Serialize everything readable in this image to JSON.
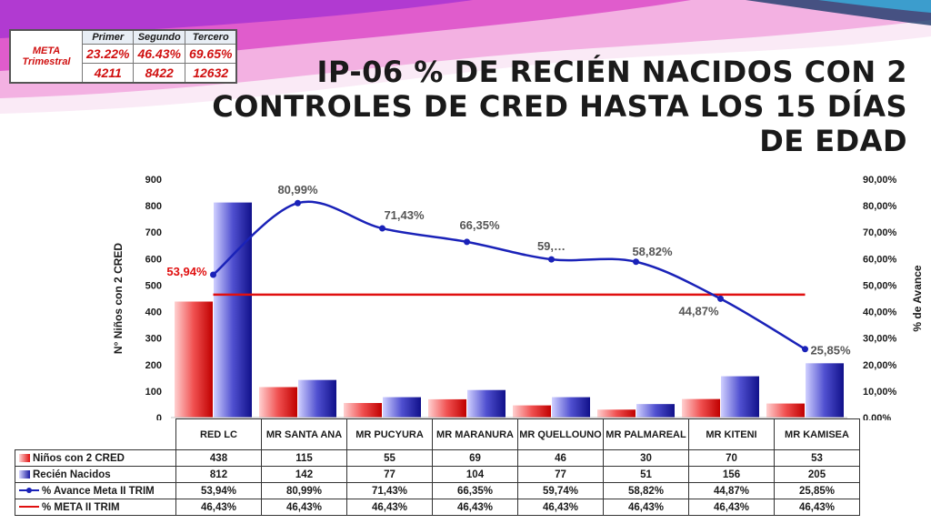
{
  "meta": {
    "label": "META Trimestral",
    "headers": [
      "Primer",
      "Segundo",
      "Tercero"
    ],
    "percents": [
      "23.22%",
      "46.43%",
      "69.65%"
    ],
    "counts": [
      "4211",
      "8422",
      "12632"
    ]
  },
  "title": "IP-06 % DE RECIÉN NACIDOS CON 2 CONTROLES DE CRED HASTA LOS 15 DÍAS DE EDAD",
  "chart_data": {
    "type": "bar",
    "categories": [
      "RED LC",
      "MR SANTA ANA",
      "MR PUCYURA",
      "MR MARANURA",
      "MR QUELLOUNO",
      "MR PALMAREAL",
      "MR KITENI",
      "MR KAMISEA"
    ],
    "series": [
      {
        "name": "Niños con 2 CRED",
        "type": "bar",
        "axis": "left",
        "color": "#e01010",
        "values": [
          438,
          115,
          55,
          69,
          46,
          30,
          70,
          53
        ],
        "labels": [
          "438",
          "115",
          "55",
          "69",
          "46",
          "30",
          "70",
          "53"
        ]
      },
      {
        "name": "Recién Nacidos",
        "type": "bar",
        "axis": "left",
        "color": "#1a1aa0",
        "values": [
          812,
          142,
          77,
          104,
          77,
          51,
          156,
          205
        ],
        "labels": [
          "812",
          "142",
          "77",
          "104",
          "77",
          "51",
          "156",
          "205"
        ]
      },
      {
        "name": "% Avance Meta II TRIM",
        "type": "line",
        "axis": "right",
        "color": "#1a22b8",
        "values": [
          53.94,
          80.99,
          71.43,
          66.35,
          59.74,
          58.82,
          44.87,
          25.85
        ],
        "labels": [
          "53,94%",
          "80,99%",
          "71,43%",
          "66,35%",
          "59,74%",
          "58,82%",
          "44,87%",
          "25,85%"
        ],
        "point_labels": [
          "53,94%",
          "80,99%",
          "71,43%",
          "66,35%",
          "59,…",
          "58,82%",
          "44,87%",
          "25,85%"
        ]
      },
      {
        "name": "% META II TRIM",
        "type": "line",
        "axis": "right",
        "color": "#e01010",
        "values": [
          46.43,
          46.43,
          46.43,
          46.43,
          46.43,
          46.43,
          46.43,
          46.43
        ],
        "labels": [
          "46,43%",
          "46,43%",
          "46,43%",
          "46,43%",
          "46,43%",
          "46,43%",
          "46,43%",
          "46,43%"
        ]
      }
    ],
    "ylabel": "N° Niños con 2 CRED",
    "y2label": "% de Avance",
    "ylim": [
      0,
      900
    ],
    "y2lim": [
      0,
      90
    ],
    "yticks": [
      "0",
      "100",
      "200",
      "300",
      "400",
      "500",
      "600",
      "700",
      "800",
      "900"
    ],
    "y2ticks": [
      "0,00%",
      "10,00%",
      "20,00%",
      "30,00%",
      "40,00%",
      "50,00%",
      "60,00%",
      "70,00%",
      "80,00%",
      "90,00%"
    ],
    "grid": false,
    "legend": "data-table"
  }
}
